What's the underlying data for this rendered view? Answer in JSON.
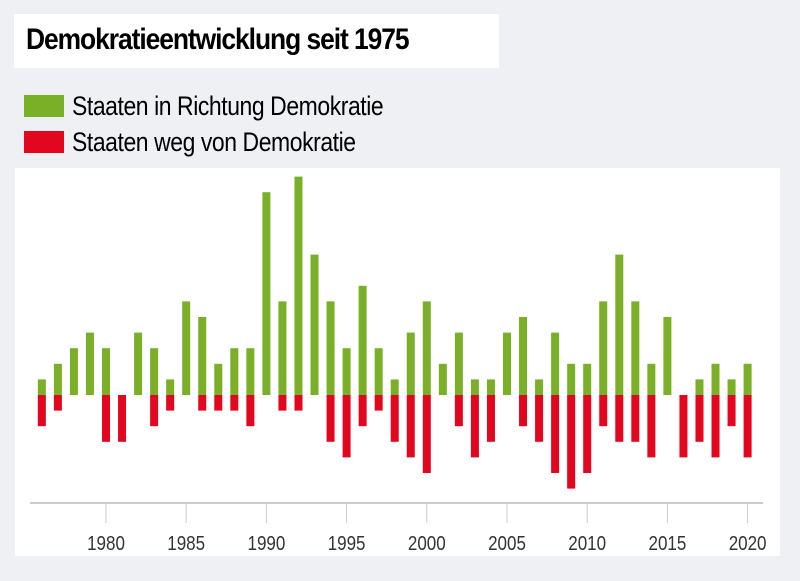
{
  "chart_data": {
    "type": "bar",
    "title": "Demokratieentwicklung seit 1975",
    "xlabel": "",
    "ylabel": "",
    "legend_placement": "top-left",
    "grid": false,
    "x": [
      1976,
      1977,
      1978,
      1979,
      1980,
      1981,
      1982,
      1983,
      1984,
      1985,
      1986,
      1987,
      1988,
      1989,
      1990,
      1991,
      1992,
      1993,
      1994,
      1995,
      1996,
      1997,
      1998,
      1999,
      2000,
      2001,
      2002,
      2003,
      2004,
      2005,
      2006,
      2007,
      2008,
      2009,
      2010,
      2011,
      2012,
      2013,
      2014,
      2015,
      2016,
      2017,
      2018,
      2019,
      2020
    ],
    "x_ticks": [
      "1980",
      "1985",
      "1990",
      "1995",
      "2000",
      "2005",
      "2010",
      "2015",
      "2020"
    ],
    "series": [
      {
        "name": "Staaten in Richtung Demokratie",
        "color": "#7aaf28",
        "values": [
          1,
          2,
          3,
          4,
          3,
          0,
          4,
          3,
          1,
          6,
          5,
          2,
          3,
          3,
          13,
          6,
          14,
          9,
          6,
          3,
          7,
          3,
          1,
          4,
          6,
          2,
          4,
          1,
          1,
          4,
          5,
          1,
          4,
          2,
          2,
          6,
          9,
          6,
          2,
          5,
          0,
          1,
          2,
          1,
          2
        ]
      },
      {
        "name": "Staaten weg von Demokratie",
        "color": "#e2061e",
        "values": [
          2,
          1,
          0,
          0,
          3,
          3,
          0,
          2,
          1,
          0,
          1,
          1,
          1,
          2,
          0,
          1,
          1,
          0,
          3,
          4,
          2,
          1,
          3,
          4,
          5,
          0,
          2,
          4,
          3,
          0,
          2,
          3,
          5,
          6,
          5,
          2,
          3,
          3,
          4,
          0,
          4,
          3,
          4,
          2,
          4
        ]
      }
    ]
  }
}
